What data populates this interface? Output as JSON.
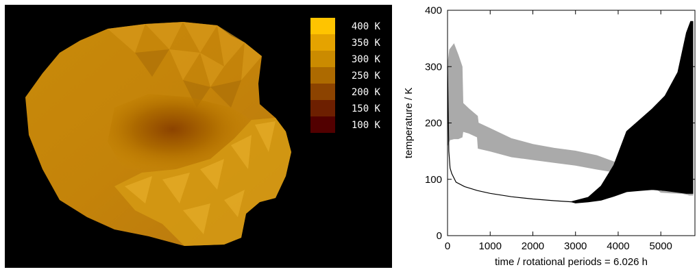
{
  "legend": {
    "colors": [
      "#ffc400",
      "#e5a300",
      "#cb8b00",
      "#ad6a00",
      "#8c4300",
      "#6d1f00",
      "#520000"
    ],
    "labels": [
      "400 K",
      "350 K",
      "300 K",
      "250 K",
      "200 K",
      "150 K",
      "100 K"
    ]
  },
  "chart_data": {
    "type": "line",
    "title": "",
    "xlabel": "time / rotational periods = 6.026 h",
    "ylabel": "temperature / K",
    "xlim": [
      0,
      5800
    ],
    "ylim": [
      0,
      400
    ],
    "xticks": [
      0,
      1000,
      2000,
      3000,
      4000,
      5000
    ],
    "yticks": [
      0,
      100,
      200,
      300,
      400
    ],
    "grid": false,
    "series": [
      {
        "color": "#aaaaaa",
        "style": "filled band (diurnal oscillation envelope)",
        "x": [
          0,
          50,
          150,
          250,
          340,
          360,
          500,
          700,
          720,
          1000,
          1500,
          2000,
          2500,
          3000,
          3500,
          4000,
          4500,
          4950,
          5000,
          5200,
          5500,
          5640,
          5660,
          5700,
          5750
        ],
        "ymax": [
          300,
          330,
          340,
          320,
          300,
          235,
          225,
          212,
          200,
          190,
          172,
          162,
          155,
          150,
          142,
          128,
          110,
          82,
          78,
          90,
          185,
          190,
          190,
          190,
          190
        ],
        "ymin": [
          160,
          170,
          172,
          172,
          175,
          185,
          182,
          175,
          155,
          150,
          140,
          135,
          130,
          125,
          118,
          112,
          100,
          80,
          77,
          76,
          75,
          73,
          72,
          72,
          72
        ]
      },
      {
        "color": "#000000",
        "style": "filled band (diurnal oscillation envelope)",
        "x": [
          0,
          30,
          60,
          100,
          200,
          400,
          700,
          1000,
          1500,
          2000,
          2500,
          2900,
          3000,
          3300,
          3600,
          3900,
          4200,
          4500,
          4800,
          5100,
          5400,
          5600,
          5700,
          5750
        ],
        "ymax": [
          300,
          150,
          120,
          110,
          95,
          87,
          80,
          75,
          69,
          65,
          62,
          60,
          62,
          68,
          88,
          125,
          185,
          205,
          225,
          248,
          290,
          360,
          380,
          380
        ],
        "ymin": [
          300,
          150,
          120,
          110,
          95,
          87,
          80,
          75,
          69,
          65,
          62,
          60,
          58,
          60,
          63,
          70,
          78,
          80,
          82,
          80,
          77,
          75,
          75,
          75
        ]
      }
    ]
  }
}
